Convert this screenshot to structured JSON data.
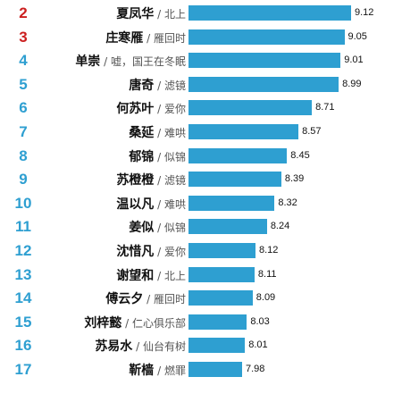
{
  "chart_data": {
    "type": "bar",
    "orientation": "horizontal",
    "separator": "/",
    "colors": {
      "bar": "#2e9fd1",
      "rank_top": "#cc1f1f",
      "rank_default": "#2e9fd1"
    },
    "rows": [
      {
        "rank": "2",
        "name": "夏凤华",
        "work": "北上",
        "value": 9.12,
        "value_label": "9.12"
      },
      {
        "rank": "3",
        "name": "庄寒雁",
        "work": "雁回时",
        "value": 9.05,
        "value_label": "9.05"
      },
      {
        "rank": "4",
        "name": "单崇",
        "work": "嘘，国王在冬眠",
        "value": 9.01,
        "value_label": "9.01"
      },
      {
        "rank": "5",
        "name": "唐奇",
        "work": "滤镜",
        "value": 8.99,
        "value_label": "8.99"
      },
      {
        "rank": "6",
        "name": "何苏叶",
        "work": "爱你",
        "value": 8.71,
        "value_label": "8.71"
      },
      {
        "rank": "7",
        "name": "桑延",
        "work": "难哄",
        "value": 8.57,
        "value_label": "8.57"
      },
      {
        "rank": "8",
        "name": "郁锦",
        "work": "似锦",
        "value": 8.45,
        "value_label": "8.45"
      },
      {
        "rank": "9",
        "name": "苏橙橙",
        "work": "滤镜",
        "value": 8.39,
        "value_label": "8.39"
      },
      {
        "rank": "10",
        "name": "温以凡",
        "work": "难哄",
        "value": 8.32,
        "value_label": "8.32"
      },
      {
        "rank": "11",
        "name": "姜似",
        "work": "似锦",
        "value": 8.24,
        "value_label": "8.24"
      },
      {
        "rank": "12",
        "name": "沈惜凡",
        "work": "爱你",
        "value": 8.12,
        "value_label": "8.12"
      },
      {
        "rank": "13",
        "name": "谢望和",
        "work": "北上",
        "value": 8.11,
        "value_label": "8.11"
      },
      {
        "rank": "14",
        "name": "傅云夕",
        "work": "雁回时",
        "value": 8.09,
        "value_label": "8.09"
      },
      {
        "rank": "15",
        "name": "刘梓懿",
        "work": "仁心俱乐部",
        "value": 8.03,
        "value_label": "8.03"
      },
      {
        "rank": "16",
        "name": "苏易水",
        "work": "仙台有树",
        "value": 8.01,
        "value_label": "8.01"
      },
      {
        "rank": "17",
        "name": "靳樯",
        "work": "燃罪",
        "value": 7.98,
        "value_label": "7.98"
      }
    ]
  }
}
